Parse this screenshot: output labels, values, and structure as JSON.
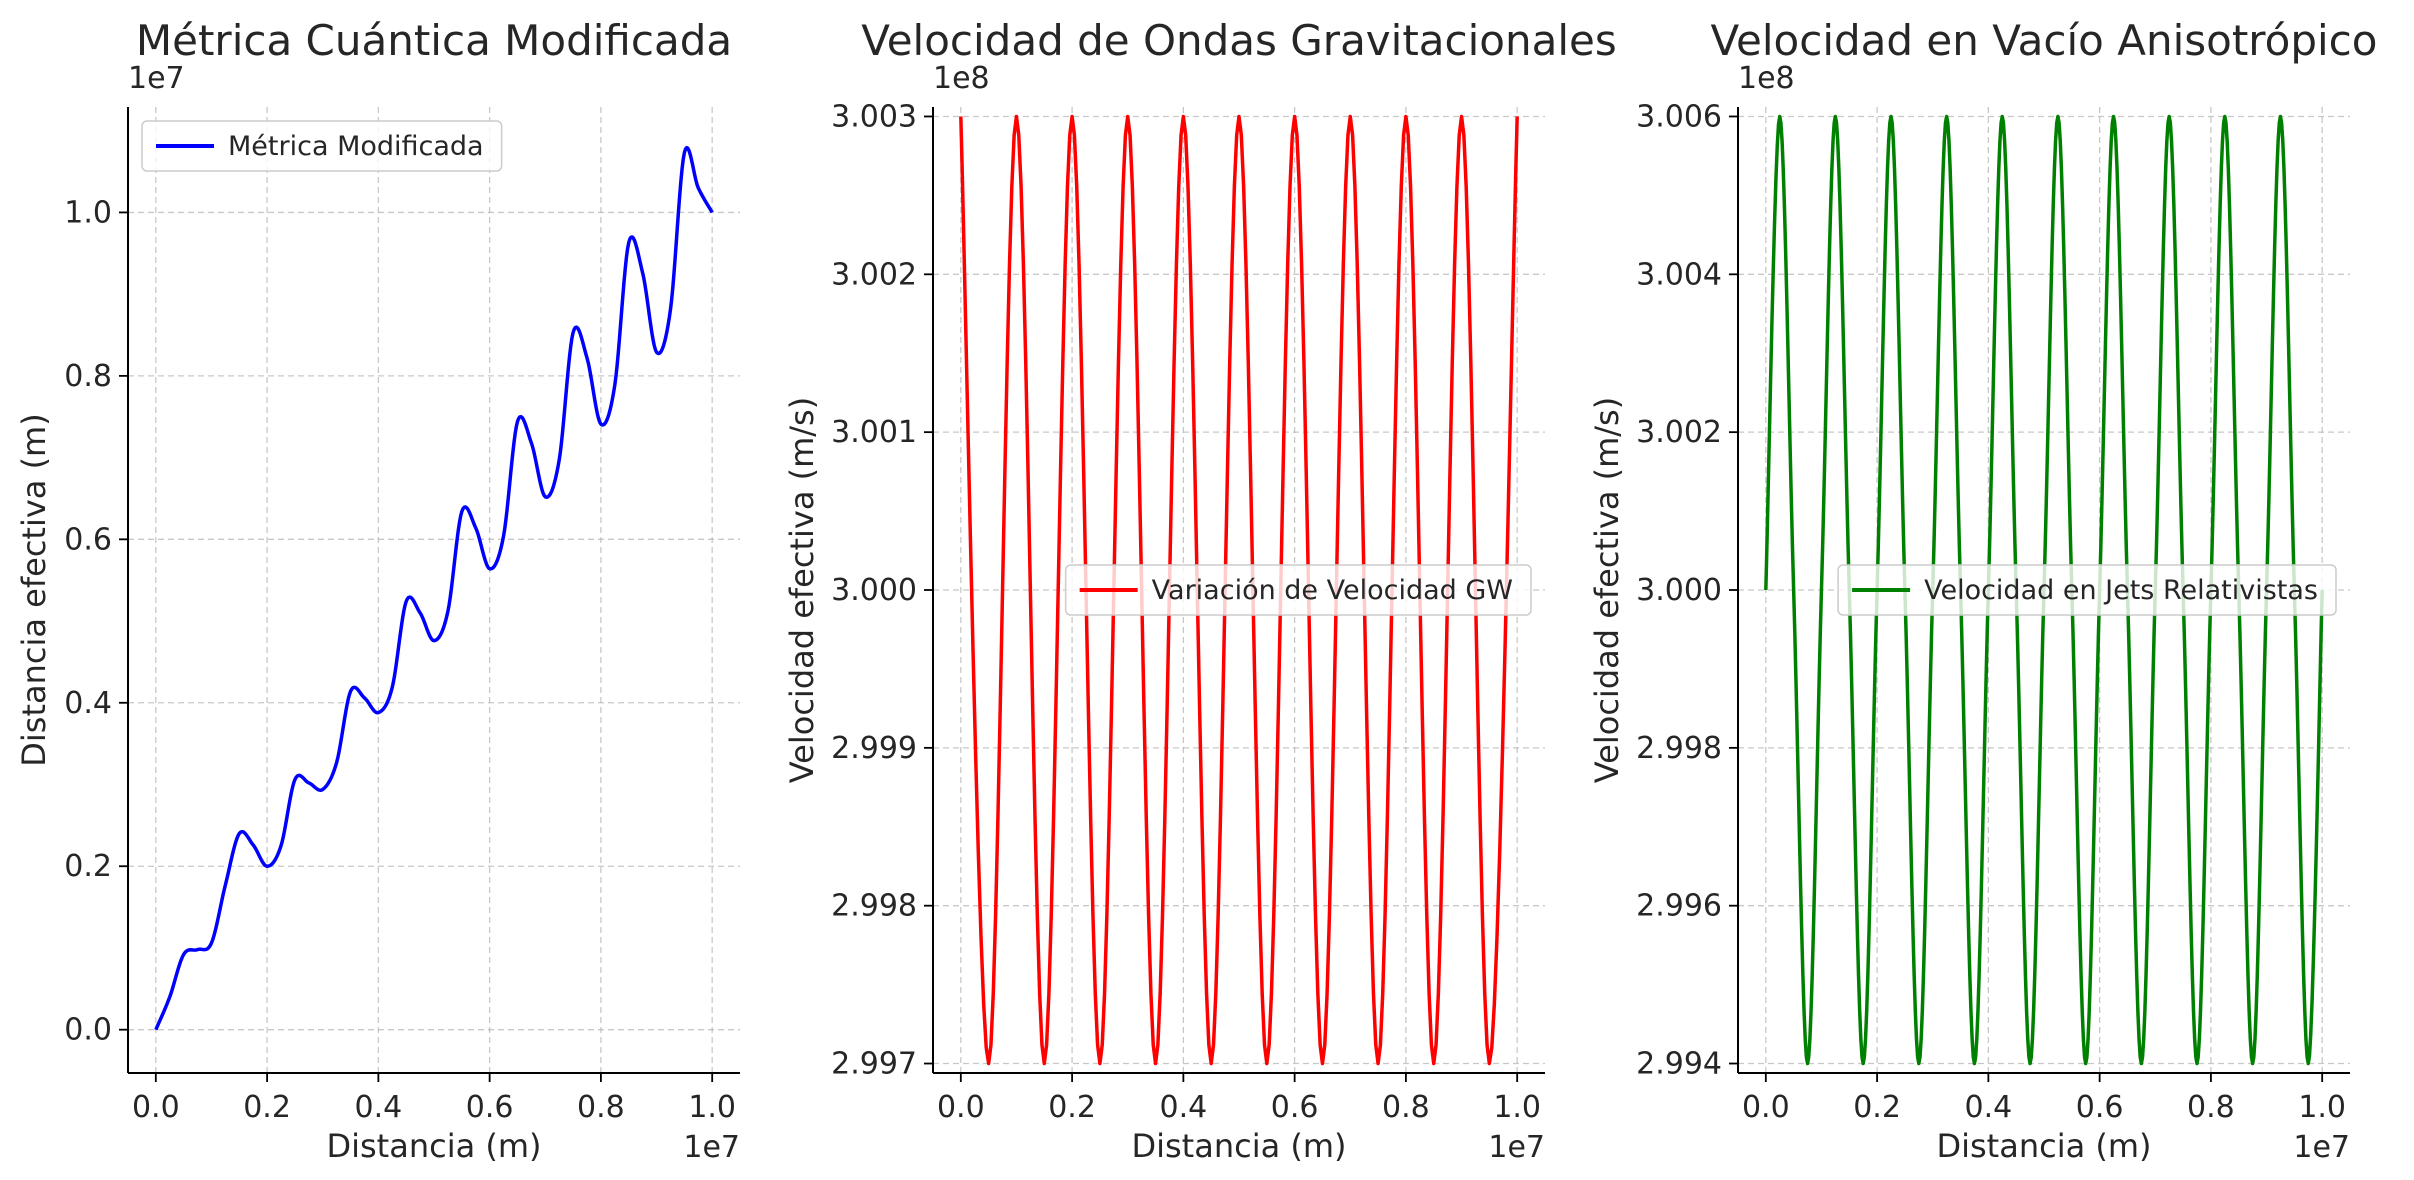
{
  "chart_data": [
    {
      "type": "line",
      "title": "Métrica Cuántica Modificada",
      "xlabel": "Distancia (m)",
      "ylabel": "Distancia efectiva (m)",
      "x_offset_label": "1e7",
      "y_offset_label": "1e7",
      "xlim": [
        -0.05,
        1.05
      ],
      "ylim": [
        -0.053,
        1.129
      ],
      "xticks": [
        0.0,
        0.2,
        0.4,
        0.6,
        0.8,
        1.0
      ],
      "xtick_labels": [
        "0.0",
        "0.2",
        "0.4",
        "0.6",
        "0.8",
        "1.0"
      ],
      "yticks": [
        0.0,
        0.2,
        0.4,
        0.6,
        0.8,
        1.0
      ],
      "ytick_labels": [
        "0.0",
        "0.2",
        "0.4",
        "0.6",
        "0.8",
        "1.0"
      ],
      "grid": true,
      "legend_position": "upper left",
      "series": [
        {
          "name": "Métrica Modificada",
          "color": "#0000ff",
          "x": [
            0.0,
            0.025,
            0.05,
            0.075,
            0.1,
            0.125,
            0.15,
            0.175,
            0.2,
            0.225,
            0.25,
            0.275,
            0.3,
            0.325,
            0.35,
            0.375,
            0.4,
            0.425,
            0.45,
            0.475,
            0.5,
            0.525,
            0.55,
            0.575,
            0.6,
            0.625,
            0.65,
            0.675,
            0.7,
            0.725,
            0.75,
            0.775,
            0.8,
            0.825,
            0.85,
            0.875,
            0.9,
            0.925,
            0.95,
            0.975,
            1.0
          ],
          "y": [
            0.0,
            0.04,
            0.092,
            0.098,
            0.106,
            0.177,
            0.24,
            0.226,
            0.2,
            0.225,
            0.306,
            0.302,
            0.294,
            0.327,
            0.414,
            0.406,
            0.388,
            0.419,
            0.524,
            0.51,
            0.476,
            0.512,
            0.634,
            0.614,
            0.564,
            0.604,
            0.744,
            0.718,
            0.652,
            0.697,
            0.853,
            0.822,
            0.741,
            0.789,
            0.963,
            0.926,
            0.829,
            0.881,
            1.073,
            1.03,
            1.0
          ]
        }
      ]
    },
    {
      "type": "line",
      "title": "Velocidad de Ondas Gravitacionales",
      "xlabel": "Distancia (m)",
      "ylabel": "Velocidad efectiva (m/s)",
      "x_offset_label": "1e7",
      "y_offset_label": "1e8",
      "xlim": [
        -0.05,
        1.05
      ],
      "ylim": [
        2.99694,
        3.00306
      ],
      "xticks": [
        0.0,
        0.2,
        0.4,
        0.6,
        0.8,
        1.0
      ],
      "xtick_labels": [
        "0.0",
        "0.2",
        "0.4",
        "0.6",
        "0.8",
        "1.0"
      ],
      "yticks": [
        2.997,
        2.998,
        2.999,
        3.0,
        3.001,
        3.002,
        3.003
      ],
      "ytick_labels": [
        "2.997",
        "2.998",
        "2.999",
        "3.000",
        "3.001",
        "3.002",
        "3.003"
      ],
      "grid": true,
      "legend_position": "center right",
      "series": [
        {
          "name": "Variación de Velocidad GW",
          "color": "#ff0000",
          "x": [
            0.0,
            0.05,
            0.1,
            0.15,
            0.2,
            0.25,
            0.3,
            0.35,
            0.4,
            0.45,
            0.5,
            0.55,
            0.6,
            0.65,
            0.7,
            0.75,
            0.8,
            0.85,
            0.9,
            0.95,
            1.0
          ],
          "y": [
            3.003,
            2.997,
            3.003,
            2.997,
            3.003,
            2.997,
            3.003,
            2.997,
            3.003,
            2.997,
            3.003,
            2.997,
            3.003,
            2.997,
            3.003,
            2.997,
            3.003,
            2.997,
            3.003,
            2.997,
            3.003
          ]
        }
      ]
    },
    {
      "type": "line",
      "title": "Velocidad en Vacío Anisotrópico",
      "xlabel": "Distancia (m)",
      "ylabel": "Velocidad efectiva (m/s)",
      "x_offset_label": "1e7",
      "y_offset_label": "1e8",
      "xlim": [
        -0.05,
        1.05
      ],
      "ylim": [
        2.99388,
        3.00612
      ],
      "xticks": [
        0.0,
        0.2,
        0.4,
        0.6,
        0.8,
        1.0
      ],
      "xtick_labels": [
        "0.0",
        "0.2",
        "0.4",
        "0.6",
        "0.8",
        "1.0"
      ],
      "yticks": [
        2.994,
        2.996,
        2.998,
        3.0,
        3.002,
        3.004,
        3.006
      ],
      "ytick_labels": [
        "2.994",
        "2.996",
        "2.998",
        "3.000",
        "3.002",
        "3.004",
        "3.006"
      ],
      "grid": true,
      "legend_position": "center right",
      "series": [
        {
          "name": "Velocidad en Jets Relativistas",
          "color": "#008000",
          "x": [
            0.0,
            0.025,
            0.05,
            0.075,
            0.1,
            0.125,
            0.15,
            0.175,
            0.2,
            0.225,
            0.25,
            0.275,
            0.3,
            0.325,
            0.35,
            0.375,
            0.4,
            0.425,
            0.45,
            0.475,
            0.5,
            0.525,
            0.55,
            0.575,
            0.6,
            0.625,
            0.65,
            0.675,
            0.7,
            0.725,
            0.75,
            0.775,
            0.8,
            0.825,
            0.85,
            0.875,
            0.9,
            0.925,
            0.95,
            0.975,
            1.0
          ],
          "y": [
            3.0,
            3.006,
            3.0,
            2.994,
            3.0,
            3.006,
            3.0,
            2.994,
            3.0,
            3.006,
            3.0,
            2.994,
            3.0,
            3.006,
            3.0,
            2.994,
            3.0,
            3.006,
            3.0,
            2.994,
            3.0,
            3.006,
            3.0,
            2.994,
            3.0,
            3.006,
            3.0,
            2.994,
            3.0,
            3.006,
            3.0,
            2.994,
            3.0,
            3.006,
            3.0,
            2.994,
            3.0,
            3.006,
            3.0,
            2.994,
            3.0
          ]
        }
      ]
    }
  ]
}
